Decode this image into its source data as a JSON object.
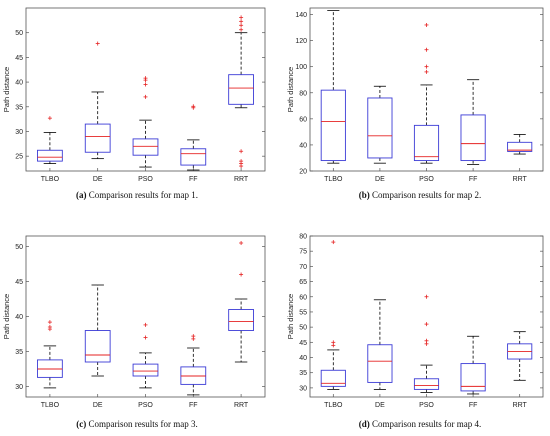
{
  "chart_data": [
    {
      "type": "boxplot",
      "caption_label": "(a)",
      "caption_text": " Comparison results for map 1.",
      "ylabel": "Path distance",
      "categories": [
        "TLBO",
        "DE",
        "PSO",
        "FF",
        "RRT"
      ],
      "ylim": [
        22,
        55
      ],
      "yticks": [
        25,
        30,
        35,
        40,
        45,
        50
      ],
      "boxes": [
        {
          "min": 23.5,
          "q1": 24.0,
          "median": 24.8,
          "q3": 26.2,
          "max": 29.8,
          "outliers": [
            32.7
          ]
        },
        {
          "min": 24.5,
          "q1": 25.8,
          "median": 29.0,
          "q3": 31.5,
          "max": 38.0,
          "outliers": [
            47.8
          ]
        },
        {
          "min": 22.8,
          "q1": 25.2,
          "median": 27.0,
          "q3": 28.5,
          "max": 32.3,
          "outliers": [
            37.0,
            39.5,
            40.4,
            40.8
          ]
        },
        {
          "min": 22.2,
          "q1": 23.2,
          "median": 25.5,
          "q3": 26.5,
          "max": 28.3,
          "outliers": [
            34.8,
            35.1
          ]
        },
        {
          "min": 34.8,
          "q1": 35.5,
          "median": 38.8,
          "q3": 41.5,
          "max": 50.0,
          "outliers": [
            50.6,
            51.5,
            52.3,
            53.1,
            26.0,
            24.0,
            23.5,
            23.0
          ]
        }
      ]
    },
    {
      "type": "boxplot",
      "caption_label": "(b)",
      "caption_text": " Comparison results for map 2.",
      "ylabel": "Path distance",
      "categories": [
        "TLBO",
        "DE",
        "PSO",
        "FF",
        "RRT"
      ],
      "ylim": [
        20,
        145
      ],
      "yticks": [
        20,
        40,
        60,
        80,
        100,
        120,
        140
      ],
      "boxes": [
        {
          "min": 26,
          "q1": 28,
          "median": 58,
          "q3": 82,
          "max": 143,
          "outliers": []
        },
        {
          "min": 26,
          "q1": 30,
          "median": 47,
          "q3": 76,
          "max": 85,
          "outliers": []
        },
        {
          "min": 26,
          "q1": 28,
          "median": 31,
          "q3": 55,
          "max": 86,
          "outliers": [
            96,
            100,
            113,
            132
          ]
        },
        {
          "min": 25,
          "q1": 28,
          "median": 41,
          "q3": 63,
          "max": 90,
          "outliers": []
        },
        {
          "min": 33,
          "q1": 35,
          "median": 36,
          "q3": 42,
          "max": 48,
          "outliers": []
        }
      ]
    },
    {
      "type": "boxplot",
      "caption_label": "(c)",
      "caption_text": " Comparison results for map 3.",
      "ylabel": "Path distance",
      "categories": [
        "TLBO",
        "DE",
        "PSO",
        "FF",
        "RRT"
      ],
      "ylim": [
        28.5,
        51.5
      ],
      "yticks": [
        30,
        35,
        40,
        45,
        50
      ],
      "boxes": [
        {
          "min": 29.8,
          "q1": 31.3,
          "median": 32.5,
          "q3": 33.8,
          "max": 35.8,
          "outliers": [
            38.2,
            38.5,
            39.2
          ]
        },
        {
          "min": 31.5,
          "q1": 33.5,
          "median": 34.5,
          "q3": 38.0,
          "max": 44.5,
          "outliers": []
        },
        {
          "min": 29.8,
          "q1": 31.5,
          "median": 32.2,
          "q3": 33.2,
          "max": 34.8,
          "outliers": [
            37.0,
            38.8
          ]
        },
        {
          "min": 28.8,
          "q1": 30.3,
          "median": 31.5,
          "q3": 32.8,
          "max": 35.5,
          "outliers": [
            36.8,
            37.2
          ]
        },
        {
          "min": 33.5,
          "q1": 38.0,
          "median": 39.3,
          "q3": 41.0,
          "max": 42.5,
          "outliers": [
            46.0,
            50.5
          ]
        }
      ]
    },
    {
      "type": "boxplot",
      "caption_label": "(d)",
      "caption_text": " Comparison results for map 4.",
      "ylabel": "Path distance",
      "categories": [
        "TLBO",
        "DE",
        "PSO",
        "FF",
        "RRT"
      ],
      "ylim": [
        27,
        80
      ],
      "yticks": [
        30,
        35,
        40,
        45,
        50,
        55,
        60,
        65,
        70,
        75,
        80
      ],
      "boxes": [
        {
          "min": 29.5,
          "q1": 30.5,
          "median": 31.5,
          "q3": 35.8,
          "max": 42.5,
          "outliers": [
            44.0,
            45.0,
            78.0
          ]
        },
        {
          "min": 29.5,
          "q1": 31.8,
          "median": 38.8,
          "q3": 44.2,
          "max": 59.0,
          "outliers": []
        },
        {
          "min": 28.5,
          "q1": 29.5,
          "median": 30.8,
          "q3": 33.0,
          "max": 37.5,
          "outliers": [
            44.5,
            45.5,
            51.0,
            60.0
          ]
        },
        {
          "min": 28.0,
          "q1": 29.0,
          "median": 30.5,
          "q3": 38.0,
          "max": 47.0,
          "outliers": []
        },
        {
          "min": 32.5,
          "q1": 39.5,
          "median": 42.0,
          "q3": 44.5,
          "max": 48.5,
          "outliers": []
        }
      ]
    }
  ],
  "colors": {
    "box": "#3b3bd6",
    "median": "#e52222",
    "whisker": "#000000",
    "outlier": "#e52222",
    "axis": "#555555"
  }
}
